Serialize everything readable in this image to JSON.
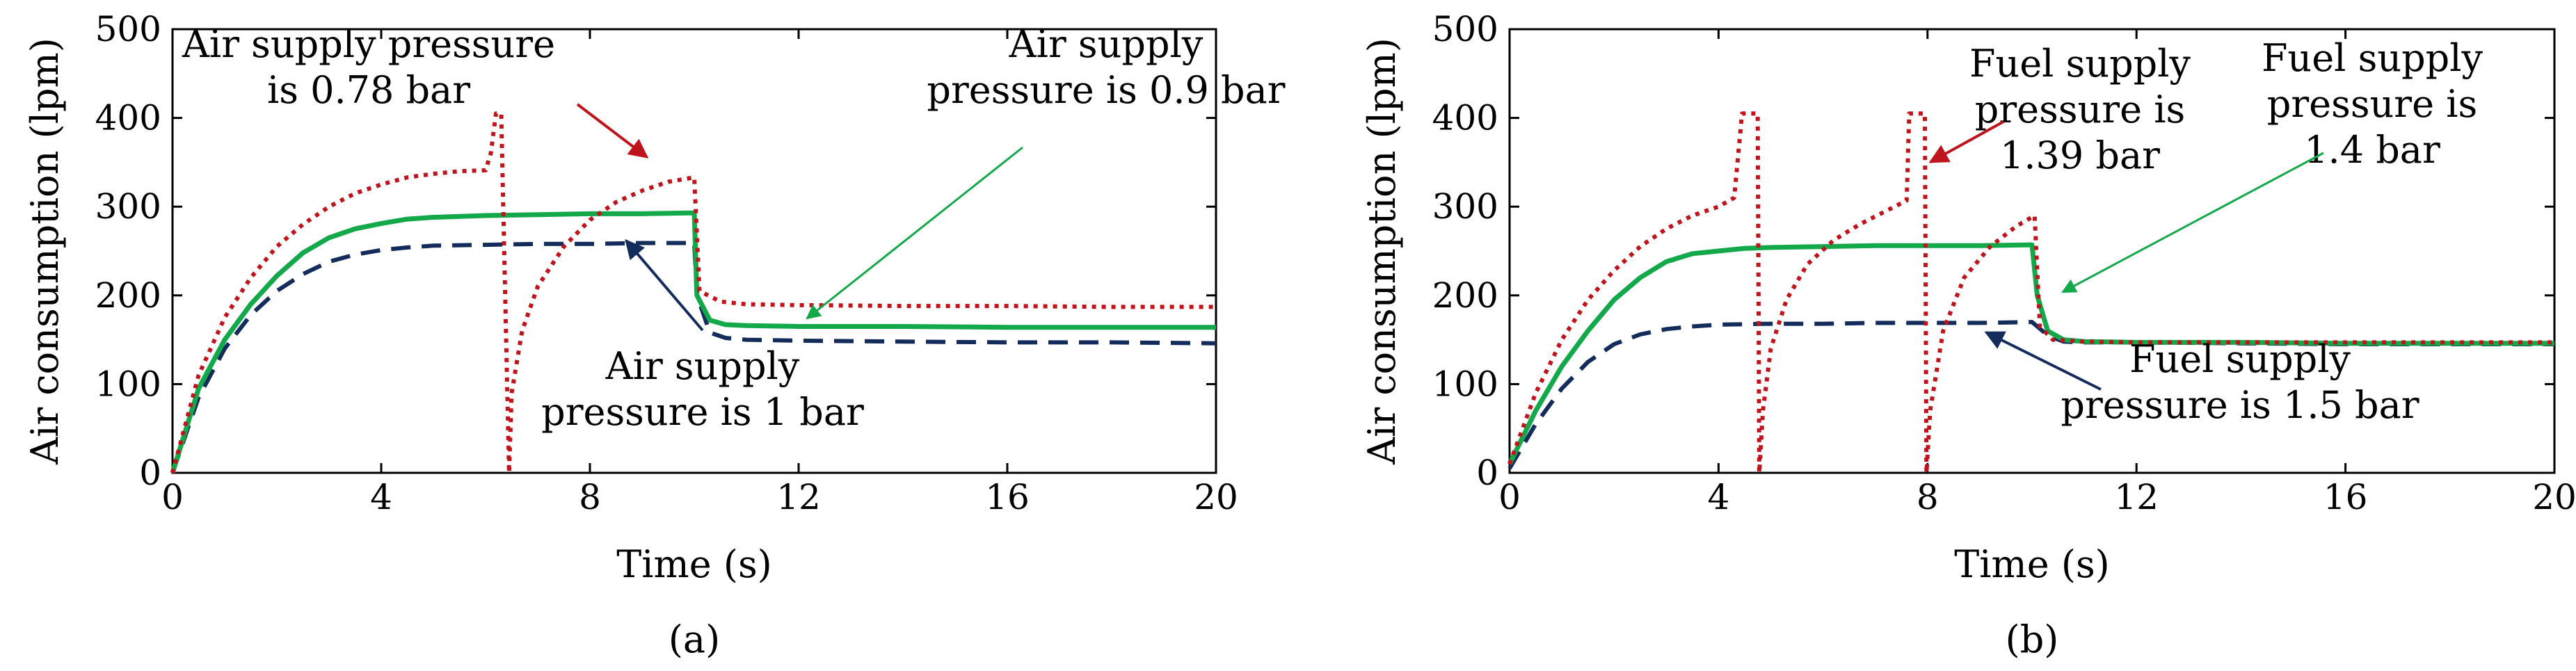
{
  "chart_data": [
    {
      "type": "line",
      "panel_label": "(a)",
      "xlabel": "Time (s)",
      "ylabel": "Air consumption (lpm)",
      "xlim": [
        0,
        20
      ],
      "ylim": [
        0,
        500
      ],
      "xticks": [
        0,
        4,
        8,
        12,
        16,
        20
      ],
      "yticks": [
        0,
        100,
        200,
        300,
        400,
        500
      ],
      "series": [
        {
          "name": "Air supply pressure is 0.78 bar",
          "style": "dotted",
          "color": "#c0141c",
          "points": [
            [
              0,
              0
            ],
            [
              0.5,
              110
            ],
            [
              1,
              175
            ],
            [
              1.5,
              220
            ],
            [
              2,
              255
            ],
            [
              2.5,
              280
            ],
            [
              3,
              300
            ],
            [
              3.5,
              315
            ],
            [
              4,
              325
            ],
            [
              4.5,
              333
            ],
            [
              5,
              337
            ],
            [
              5.5,
              340
            ],
            [
              6,
              341
            ],
            [
              6.1,
              360
            ],
            [
              6.2,
              405
            ],
            [
              6.3,
              405
            ],
            [
              6.45,
              0
            ],
            [
              6.5,
              90
            ],
            [
              6.7,
              160
            ],
            [
              7,
              210
            ],
            [
              7.5,
              255
            ],
            [
              8,
              285
            ],
            [
              8.5,
              305
            ],
            [
              9,
              318
            ],
            [
              9.5,
              328
            ],
            [
              10,
              333
            ],
            [
              10.1,
              205
            ],
            [
              10.5,
              193
            ],
            [
              11,
              190
            ],
            [
              12,
              189
            ],
            [
              14,
              188
            ],
            [
              16,
              188
            ],
            [
              18,
              187
            ],
            [
              20,
              187
            ]
          ]
        },
        {
          "name": "Air supply pressure is 0.9 bar",
          "style": "solid",
          "color": "#13a84a",
          "points": [
            [
              0,
              0
            ],
            [
              0.5,
              95
            ],
            [
              1,
              150
            ],
            [
              1.5,
              190
            ],
            [
              2,
              222
            ],
            [
              2.5,
              248
            ],
            [
              3,
              265
            ],
            [
              3.5,
              275
            ],
            [
              4,
              281
            ],
            [
              4.5,
              286
            ],
            [
              5,
              288
            ],
            [
              6,
              290
            ],
            [
              7,
              291
            ],
            [
              8,
              292
            ],
            [
              9,
              292
            ],
            [
              10,
              293
            ],
            [
              10.05,
              200
            ],
            [
              10.3,
              172
            ],
            [
              10.6,
              167
            ],
            [
              11,
              166
            ],
            [
              12,
              165
            ],
            [
              14,
              165
            ],
            [
              16,
              164
            ],
            [
              18,
              164
            ],
            [
              20,
              164
            ]
          ]
        },
        {
          "name": "Air supply pressure is 1 bar",
          "style": "dashed",
          "color": "#142c5c",
          "points": [
            [
              0,
              0
            ],
            [
              0.5,
              85
            ],
            [
              1,
              140
            ],
            [
              1.5,
              178
            ],
            [
              2,
              205
            ],
            [
              2.5,
              224
            ],
            [
              3,
              238
            ],
            [
              3.5,
              246
            ],
            [
              4,
              251
            ],
            [
              4.5,
              254
            ],
            [
              5,
              256
            ],
            [
              6,
              257
            ],
            [
              7,
              258
            ],
            [
              8,
              258
            ],
            [
              9,
              259
            ],
            [
              10,
              259
            ],
            [
              10.05,
              200
            ],
            [
              10.3,
              158
            ],
            [
              10.6,
              152
            ],
            [
              11,
              150
            ],
            [
              12,
              149
            ],
            [
              14,
              148
            ],
            [
              16,
              147
            ],
            [
              18,
              147
            ],
            [
              20,
              146
            ]
          ]
        }
      ],
      "annotations": [
        {
          "lines": [
            "Air supply pressure",
            "is 0.78 bar"
          ],
          "color": "#c0141c"
        },
        {
          "lines": [
            "Air supply",
            "pressure is 0.9 bar"
          ],
          "color": "#13a84a"
        },
        {
          "lines": [
            "Air supply",
            "pressure is 1 bar"
          ],
          "color": "#142c5c"
        }
      ]
    },
    {
      "type": "line",
      "panel_label": "(b)",
      "xlabel": "Time (s)",
      "ylabel": "Air consumption (lpm)",
      "xlim": [
        0,
        20
      ],
      "ylim": [
        0,
        500
      ],
      "xticks": [
        0,
        4,
        8,
        12,
        16,
        20
      ],
      "yticks": [
        0,
        100,
        200,
        300,
        400,
        500
      ],
      "series": [
        {
          "name": "Fuel supply pressure is 1.39 bar",
          "style": "dotted",
          "color": "#c0141c",
          "points": [
            [
              0,
              10
            ],
            [
              0.5,
              90
            ],
            [
              1,
              150
            ],
            [
              1.5,
              195
            ],
            [
              2,
              228
            ],
            [
              2.5,
              255
            ],
            [
              3,
              275
            ],
            [
              3.5,
              290
            ],
            [
              4,
              300
            ],
            [
              4.3,
              310
            ],
            [
              4.45,
              405
            ],
            [
              4.75,
              405
            ],
            [
              4.78,
              0
            ],
            [
              4.85,
              70
            ],
            [
              5,
              140
            ],
            [
              5.3,
              195
            ],
            [
              5.7,
              235
            ],
            [
              6.2,
              262
            ],
            [
              6.7,
              280
            ],
            [
              7.2,
              295
            ],
            [
              7.6,
              307
            ],
            [
              7.65,
              405
            ],
            [
              7.95,
              405
            ],
            [
              7.98,
              0
            ],
            [
              8.05,
              70
            ],
            [
              8.3,
              160
            ],
            [
              8.7,
              220
            ],
            [
              9.2,
              255
            ],
            [
              9.7,
              278
            ],
            [
              10.05,
              290
            ],
            [
              10.15,
              165
            ],
            [
              10.4,
              150
            ],
            [
              11,
              148
            ],
            [
              12,
              147
            ],
            [
              14,
              147
            ],
            [
              16,
              147
            ],
            [
              18,
              147
            ],
            [
              20,
              147
            ]
          ]
        },
        {
          "name": "Fuel supply pressure is 1.4 bar",
          "style": "solid",
          "color": "#13a84a",
          "points": [
            [
              0,
              10
            ],
            [
              0.5,
              70
            ],
            [
              1,
              120
            ],
            [
              1.5,
              160
            ],
            [
              2,
              195
            ],
            [
              2.5,
              220
            ],
            [
              3,
              238
            ],
            [
              3.5,
              247
            ],
            [
              4,
              250
            ],
            [
              4.5,
              253
            ],
            [
              5,
              254
            ],
            [
              6,
              255
            ],
            [
              7,
              256
            ],
            [
              8,
              256
            ],
            [
              9,
              256
            ],
            [
              10,
              257
            ],
            [
              10.1,
              200
            ],
            [
              10.3,
              160
            ],
            [
              10.6,
              150
            ],
            [
              11,
              148
            ],
            [
              12,
              147
            ],
            [
              14,
              147
            ],
            [
              16,
              146
            ],
            [
              18,
              146
            ],
            [
              20,
              146
            ]
          ]
        },
        {
          "name": "Fuel supply pressure is 1.5 bar",
          "style": "dashed",
          "color": "#142c5c",
          "points": [
            [
              0,
              5
            ],
            [
              0.5,
              55
            ],
            [
              1,
              95
            ],
            [
              1.5,
              125
            ],
            [
              2,
              145
            ],
            [
              2.5,
              156
            ],
            [
              3,
              162
            ],
            [
              3.5,
              165
            ],
            [
              4,
              167
            ],
            [
              5,
              168
            ],
            [
              6,
              168
            ],
            [
              7,
              169
            ],
            [
              8,
              169
            ],
            [
              9,
              169
            ],
            [
              10,
              170
            ],
            [
              10.3,
              155
            ],
            [
              10.6,
              148
            ],
            [
              11,
              147
            ],
            [
              12,
              147
            ],
            [
              14,
              146
            ],
            [
              16,
              145
            ],
            [
              18,
              145
            ],
            [
              20,
              145
            ]
          ]
        }
      ],
      "annotations": [
        {
          "lines": [
            "Fuel supply",
            "pressure is",
            "1.39 bar"
          ],
          "color": "#c0141c"
        },
        {
          "lines": [
            "Fuel supply",
            "pressure is",
            "1.4 bar"
          ],
          "color": "#13a84a"
        },
        {
          "lines": [
            "Fuel supply",
            "pressure is 1.5 bar"
          ],
          "color": "#142c5c"
        }
      ]
    }
  ]
}
